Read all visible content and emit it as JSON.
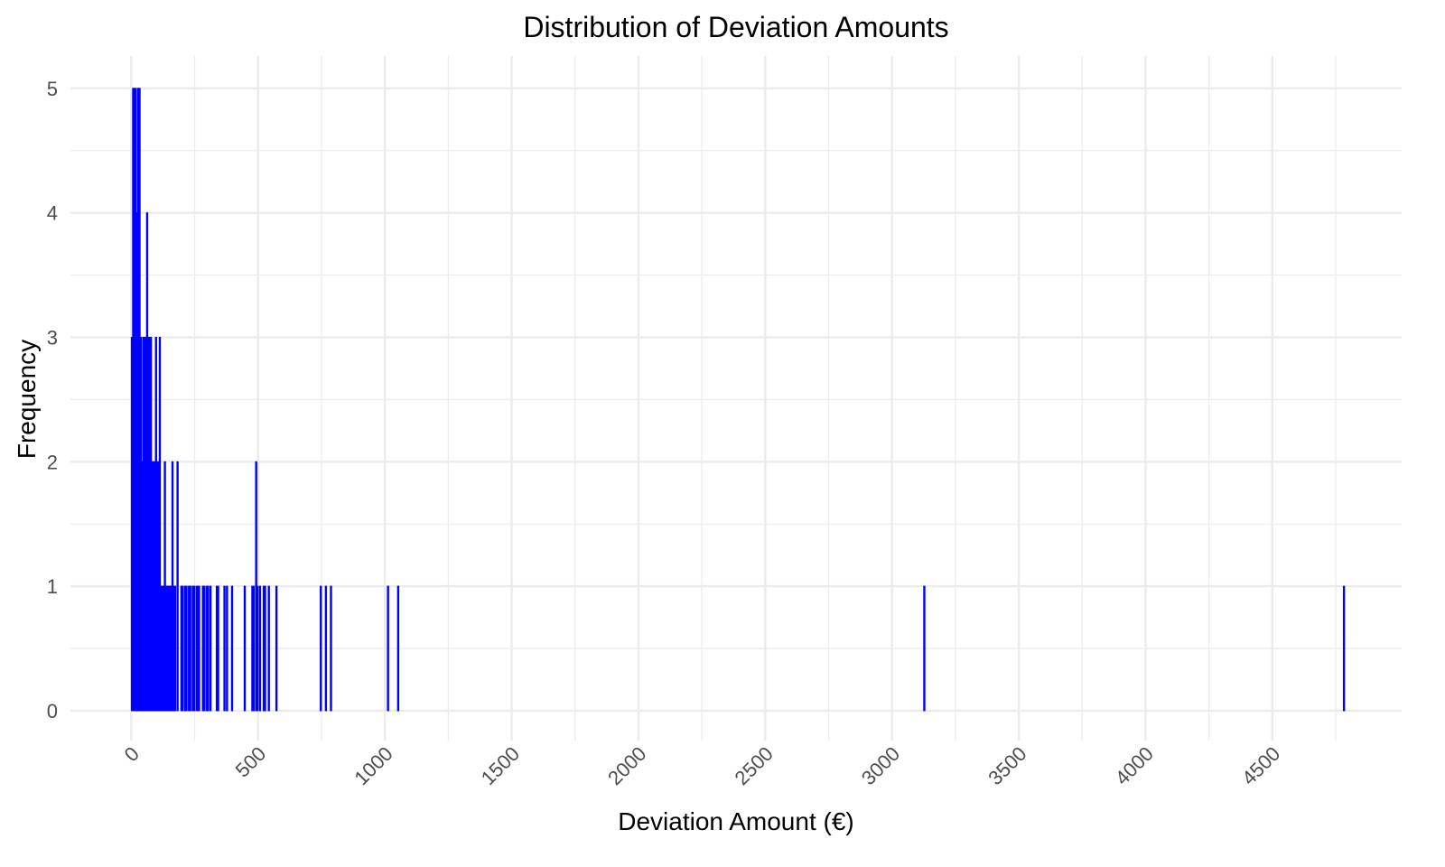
{
  "chart_data": {
    "type": "bar",
    "subtype": "histogram",
    "title": "Distribution of Deviation Amounts",
    "xlabel": "Deviation Amount (€)",
    "ylabel": "Frequency",
    "xlim": [
      -240,
      5010
    ],
    "ylim": [
      -0.24,
      5.26
    ],
    "x_ticks": [
      "0",
      "500",
      "1000",
      "1500",
      "2000",
      "2500",
      "3000",
      "3500",
      "4000",
      "4500"
    ],
    "x_tick_values": [
      0,
      500,
      1000,
      1500,
      2000,
      2500,
      3000,
      3500,
      4000,
      4500
    ],
    "y_ticks": [
      "0",
      "1",
      "2",
      "3",
      "4",
      "5"
    ],
    "y_tick_values": [
      0,
      1,
      2,
      3,
      4,
      5
    ],
    "bin_width": 5,
    "grid": true,
    "bar_color": "#0000FF",
    "bins": [
      [
        0,
        3
      ],
      [
        5,
        5
      ],
      [
        10,
        5
      ],
      [
        15,
        5
      ],
      [
        20,
        4
      ],
      [
        25,
        5
      ],
      [
        30,
        5
      ],
      [
        35,
        3
      ],
      [
        40,
        2
      ],
      [
        45,
        3
      ],
      [
        50,
        3
      ],
      [
        55,
        3
      ],
      [
        60,
        4
      ],
      [
        65,
        3
      ],
      [
        70,
        3
      ],
      [
        75,
        3
      ],
      [
        80,
        2
      ],
      [
        85,
        2
      ],
      [
        90,
        2
      ],
      [
        95,
        3
      ],
      [
        100,
        2
      ],
      [
        105,
        2
      ],
      [
        110,
        3
      ],
      [
        115,
        1
      ],
      [
        120,
        1
      ],
      [
        125,
        1
      ],
      [
        130,
        2
      ],
      [
        135,
        1
      ],
      [
        140,
        1
      ],
      [
        145,
        1
      ],
      [
        150,
        1
      ],
      [
        155,
        1
      ],
      [
        160,
        2
      ],
      [
        165,
        1
      ],
      [
        170,
        1
      ],
      [
        180,
        2
      ],
      [
        195,
        1
      ],
      [
        200,
        1
      ],
      [
        210,
        1
      ],
      [
        215,
        1
      ],
      [
        225,
        1
      ],
      [
        230,
        1
      ],
      [
        240,
        1
      ],
      [
        245,
        1
      ],
      [
        255,
        1
      ],
      [
        260,
        1
      ],
      [
        265,
        1
      ],
      [
        280,
        1
      ],
      [
        285,
        1
      ],
      [
        295,
        1
      ],
      [
        300,
        1
      ],
      [
        310,
        1
      ],
      [
        335,
        1
      ],
      [
        340,
        1
      ],
      [
        365,
        1
      ],
      [
        375,
        1
      ],
      [
        395,
        1
      ],
      [
        445,
        1
      ],
      [
        475,
        1
      ],
      [
        480,
        1
      ],
      [
        490,
        2
      ],
      [
        495,
        1
      ],
      [
        505,
        1
      ],
      [
        520,
        1
      ],
      [
        525,
        1
      ],
      [
        540,
        1
      ],
      [
        570,
        1
      ],
      [
        745,
        1
      ],
      [
        765,
        1
      ],
      [
        785,
        1
      ],
      [
        1010,
        1
      ],
      [
        1050,
        1
      ],
      [
        3125,
        1
      ],
      [
        4780,
        1
      ]
    ]
  }
}
